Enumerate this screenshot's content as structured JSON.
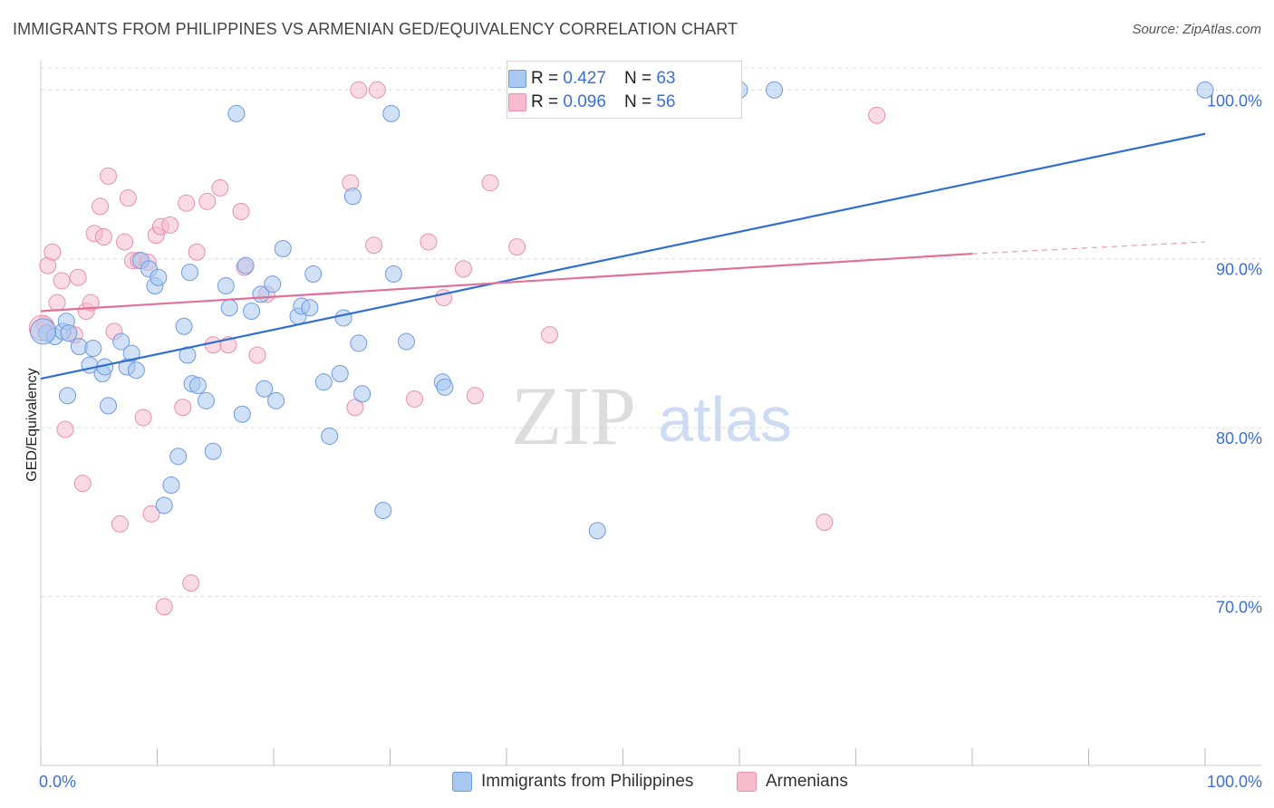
{
  "title": "IMMIGRANTS FROM PHILIPPINES VS ARMENIAN GED/EQUIVALENCY CORRELATION CHART",
  "source": "Source: ZipAtlas.com",
  "watermark": {
    "zip": "ZIP",
    "atlas": "atlas"
  },
  "legend_top": {
    "rows": [
      {
        "r_label": "R = ",
        "r_value": "0.427",
        "n_label": "N = ",
        "n_value": "63"
      },
      {
        "r_label": "R = ",
        "r_value": "0.096",
        "n_label": "N = ",
        "n_value": "56"
      }
    ]
  },
  "legend_bottom": [
    "Immigrants from Philippines",
    "Armenians"
  ],
  "colors": {
    "blue_fill": "#a9c8f0",
    "blue_stroke": "#6e9be0",
    "blue_line": "#2f6fd0",
    "pink_fill": "#f6bccd",
    "pink_stroke": "#e890ad",
    "pink_line": "#e0709a",
    "axis_text": "#3a6fd8",
    "grid": "#dddddd"
  },
  "chart_data": {
    "type": "scatter",
    "title": "IMMIGRANTS FROM PHILIPPINES VS ARMENIAN GED/EQUIVALENCY CORRELATION CHART",
    "xlabel": "",
    "ylabel": "GED/Equivalency",
    "xlim": [
      0,
      100
    ],
    "ylim": [
      60,
      102
    ],
    "x_tick_labels": [
      "0.0%",
      "100.0%"
    ],
    "y_ticks": [
      70,
      80,
      90,
      100
    ],
    "y_tick_labels": [
      "70.0%",
      "80.0%",
      "90.0%",
      "100.0%"
    ],
    "grid": true,
    "legend_position": "top-center",
    "series": [
      {
        "name": "Immigrants from Philippines",
        "r": 0.427,
        "n": 63,
        "trend": {
          "x": [
            0,
            100
          ],
          "y": [
            82.9,
            97.4
          ],
          "dashed_from": null
        },
        "points": [
          [
            0.5,
            85.6
          ],
          [
            1.2,
            85.4
          ],
          [
            1.9,
            85.7
          ],
          [
            2.2,
            86.3
          ],
          [
            2.4,
            85.6
          ],
          [
            2.3,
            81.9
          ],
          [
            3.3,
            84.8
          ],
          [
            4.2,
            83.7
          ],
          [
            4.5,
            84.7
          ],
          [
            5.3,
            83.2
          ],
          [
            5.5,
            83.6
          ],
          [
            5.8,
            81.3
          ],
          [
            6.9,
            85.1
          ],
          [
            7.4,
            83.6
          ],
          [
            7.8,
            84.4
          ],
          [
            8.2,
            83.4
          ],
          [
            8.6,
            89.9
          ],
          [
            9.3,
            89.4
          ],
          [
            9.8,
            88.4
          ],
          [
            10.1,
            88.9
          ],
          [
            10.6,
            75.4
          ],
          [
            11.2,
            76.6
          ],
          [
            11.8,
            78.3
          ],
          [
            12.3,
            86.0
          ],
          [
            12.6,
            84.3
          ],
          [
            12.8,
            89.2
          ],
          [
            13.0,
            82.6
          ],
          [
            13.5,
            82.5
          ],
          [
            14.2,
            81.6
          ],
          [
            14.8,
            78.6
          ],
          [
            15.9,
            88.4
          ],
          [
            16.2,
            87.1
          ],
          [
            16.8,
            98.6
          ],
          [
            17.3,
            80.8
          ],
          [
            17.6,
            89.6
          ],
          [
            18.1,
            86.9
          ],
          [
            18.9,
            87.9
          ],
          [
            19.2,
            82.3
          ],
          [
            19.9,
            88.5
          ],
          [
            20.2,
            81.6
          ],
          [
            20.8,
            90.6
          ],
          [
            22.1,
            86.6
          ],
          [
            22.4,
            87.2
          ],
          [
            23.1,
            87.1
          ],
          [
            23.4,
            89.1
          ],
          [
            24.3,
            82.7
          ],
          [
            24.8,
            79.5
          ],
          [
            25.7,
            83.2
          ],
          [
            26.0,
            86.5
          ],
          [
            26.8,
            93.7
          ],
          [
            27.3,
            85.0
          ],
          [
            27.6,
            82.0
          ],
          [
            29.4,
            75.1
          ],
          [
            30.1,
            98.6
          ],
          [
            30.3,
            89.1
          ],
          [
            31.4,
            85.1
          ],
          [
            34.5,
            82.7
          ],
          [
            34.7,
            82.4
          ],
          [
            47.8,
            73.9
          ],
          [
            60.0,
            100.0
          ],
          [
            63.0,
            100.0
          ],
          [
            100.0,
            100.0
          ],
          [
            0.2,
            85.7
          ]
        ]
      },
      {
        "name": "Armenians",
        "r": 0.096,
        "n": 56,
        "trend": {
          "x": [
            0,
            80,
            100
          ],
          "y": [
            86.9,
            90.3,
            91.0
          ],
          "dashed_from": 80
        },
        "points": [
          [
            0.3,
            86.1
          ],
          [
            0.6,
            89.6
          ],
          [
            1.0,
            90.4
          ],
          [
            1.4,
            87.4
          ],
          [
            1.8,
            88.7
          ],
          [
            2.1,
            79.9
          ],
          [
            2.9,
            85.5
          ],
          [
            3.2,
            88.9
          ],
          [
            3.6,
            76.7
          ],
          [
            3.9,
            86.9
          ],
          [
            4.3,
            87.4
          ],
          [
            4.6,
            91.5
          ],
          [
            5.1,
            93.1
          ],
          [
            5.4,
            91.3
          ],
          [
            5.8,
            94.9
          ],
          [
            6.3,
            85.7
          ],
          [
            6.8,
            74.3
          ],
          [
            7.2,
            91.0
          ],
          [
            7.5,
            93.6
          ],
          [
            7.9,
            89.9
          ],
          [
            8.4,
            89.9
          ],
          [
            8.8,
            80.6
          ],
          [
            9.2,
            89.8
          ],
          [
            9.5,
            74.9
          ],
          [
            9.9,
            91.4
          ],
          [
            10.3,
            91.9
          ],
          [
            10.6,
            69.4
          ],
          [
            11.1,
            92.0
          ],
          [
            12.2,
            81.2
          ],
          [
            12.5,
            93.3
          ],
          [
            12.9,
            70.8
          ],
          [
            13.4,
            90.4
          ],
          [
            14.3,
            93.4
          ],
          [
            14.8,
            84.9
          ],
          [
            15.4,
            94.2
          ],
          [
            16.1,
            84.9
          ],
          [
            17.2,
            92.8
          ],
          [
            17.5,
            89.5
          ],
          [
            18.6,
            84.3
          ],
          [
            19.4,
            87.9
          ],
          [
            26.6,
            94.5
          ],
          [
            27.0,
            81.2
          ],
          [
            27.3,
            100.0
          ],
          [
            28.6,
            90.8
          ],
          [
            28.9,
            100.0
          ],
          [
            32.1,
            81.7
          ],
          [
            33.3,
            91.0
          ],
          [
            34.6,
            87.7
          ],
          [
            36.3,
            89.4
          ],
          [
            37.3,
            81.9
          ],
          [
            38.6,
            94.5
          ],
          [
            40.9,
            90.7
          ],
          [
            43.7,
            85.5
          ],
          [
            67.3,
            74.4
          ],
          [
            71.8,
            98.5
          ],
          [
            0.1,
            85.9
          ]
        ]
      }
    ]
  }
}
